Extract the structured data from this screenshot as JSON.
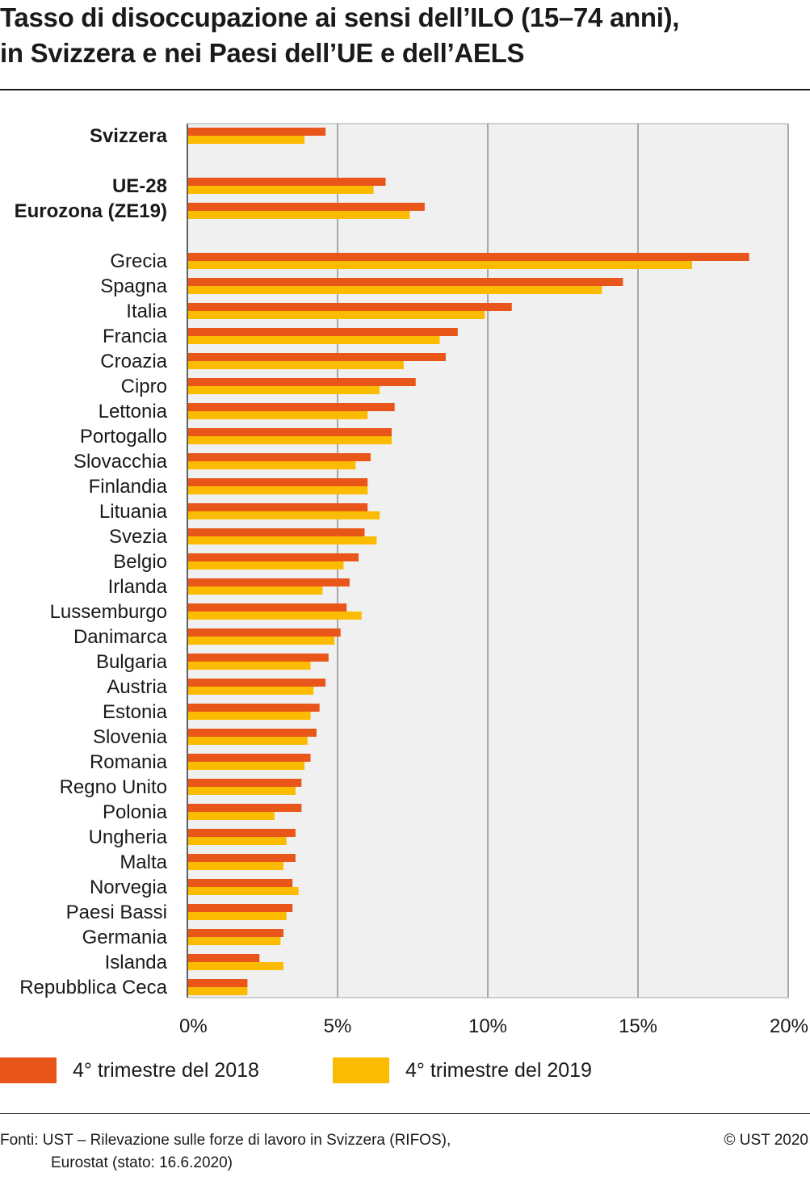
{
  "title": {
    "line1": "Tasso di disoccupazione ai sensi dell’ILO (15–74 anni),",
    "line2": "in Svizzera e nei Paesi dell’UE e dell’AELS"
  },
  "colors": {
    "series_2018": "#e8561a",
    "series_2019": "#fbbb00",
    "plot_background": "#eff0ef",
    "gridline": "#a7a9a8"
  },
  "legend": {
    "item1": "4° trimestre del 2018",
    "item2": "4° trimestre del 2019"
  },
  "footer": {
    "source_line1": "Fonti: UST – Rilevazione sulle forze di lavoro in Svizzera (RIFOS),",
    "source_line2": "Eurostat (stato: 16.6.2020)",
    "copyright": "© UST 2020"
  },
  "chart_data": {
    "type": "bar",
    "orientation": "horizontal",
    "title": "Tasso di disoccupazione ai sensi dell’ILO (15–74 anni), in Svizzera e nei Paesi dell’UE e dell’AELS",
    "xlim": [
      0,
      20
    ],
    "x_ticks": [
      0,
      5,
      10,
      15,
      20
    ],
    "x_tick_labels": [
      "0%",
      "5%",
      "10%",
      "15%",
      "20%"
    ],
    "grid": true,
    "legend_position": "bottom",
    "categories": [
      {
        "label": "Svizzera",
        "bold": true,
        "group": 0
      },
      {
        "label": "UE-28",
        "bold": true,
        "group": 1
      },
      {
        "label": "Eurozona (ZE19)",
        "bold": true,
        "group": 1
      },
      {
        "label": "Grecia",
        "bold": false,
        "group": 2
      },
      {
        "label": "Spagna",
        "bold": false,
        "group": 2
      },
      {
        "label": "Italia",
        "bold": false,
        "group": 2
      },
      {
        "label": "Francia",
        "bold": false,
        "group": 2
      },
      {
        "label": "Croazia",
        "bold": false,
        "group": 2
      },
      {
        "label": "Cipro",
        "bold": false,
        "group": 2
      },
      {
        "label": "Lettonia",
        "bold": false,
        "group": 2
      },
      {
        "label": "Portogallo",
        "bold": false,
        "group": 2
      },
      {
        "label": "Slovacchia",
        "bold": false,
        "group": 2
      },
      {
        "label": "Finlandia",
        "bold": false,
        "group": 2
      },
      {
        "label": "Lituania",
        "bold": false,
        "group": 2
      },
      {
        "label": "Svezia",
        "bold": false,
        "group": 2
      },
      {
        "label": "Belgio",
        "bold": false,
        "group": 2
      },
      {
        "label": "Irlanda",
        "bold": false,
        "group": 2
      },
      {
        "label": "Lussemburgo",
        "bold": false,
        "group": 2
      },
      {
        "label": "Danimarca",
        "bold": false,
        "group": 2
      },
      {
        "label": "Bulgaria",
        "bold": false,
        "group": 2
      },
      {
        "label": "Austria",
        "bold": false,
        "group": 2
      },
      {
        "label": "Estonia",
        "bold": false,
        "group": 2
      },
      {
        "label": "Slovenia",
        "bold": false,
        "group": 2
      },
      {
        "label": "Romania",
        "bold": false,
        "group": 2
      },
      {
        "label": "Regno Unito",
        "bold": false,
        "group": 2
      },
      {
        "label": "Polonia",
        "bold": false,
        "group": 2
      },
      {
        "label": "Ungheria",
        "bold": false,
        "group": 2
      },
      {
        "label": "Malta",
        "bold": false,
        "group": 2
      },
      {
        "label": "Norvegia",
        "bold": false,
        "group": 2
      },
      {
        "label": "Paesi Bassi",
        "bold": false,
        "group": 2
      },
      {
        "label": "Germania",
        "bold": false,
        "group": 2
      },
      {
        "label": "Islanda",
        "bold": false,
        "group": 2
      },
      {
        "label": "Repubblica Ceca",
        "bold": false,
        "group": 2
      }
    ],
    "series": [
      {
        "name": "4° trimestre del 2018",
        "values": [
          4.6,
          6.6,
          7.9,
          18.7,
          14.5,
          10.8,
          9.0,
          8.6,
          7.6,
          6.9,
          6.8,
          6.1,
          6.0,
          6.0,
          5.9,
          5.7,
          5.4,
          5.3,
          5.1,
          4.7,
          4.6,
          4.4,
          4.3,
          4.1,
          3.8,
          3.8,
          3.6,
          3.6,
          3.5,
          3.5,
          3.2,
          2.4,
          2.0
        ]
      },
      {
        "name": "4° trimestre del 2019",
        "values": [
          3.9,
          6.2,
          7.4,
          16.8,
          13.8,
          9.9,
          8.4,
          7.2,
          6.4,
          6.0,
          6.8,
          5.6,
          6.0,
          6.4,
          6.3,
          5.2,
          4.5,
          5.8,
          4.9,
          4.1,
          4.2,
          4.1,
          4.0,
          3.9,
          3.6,
          2.9,
          3.3,
          3.2,
          3.7,
          3.3,
          3.1,
          3.2,
          2.0
        ]
      }
    ]
  }
}
